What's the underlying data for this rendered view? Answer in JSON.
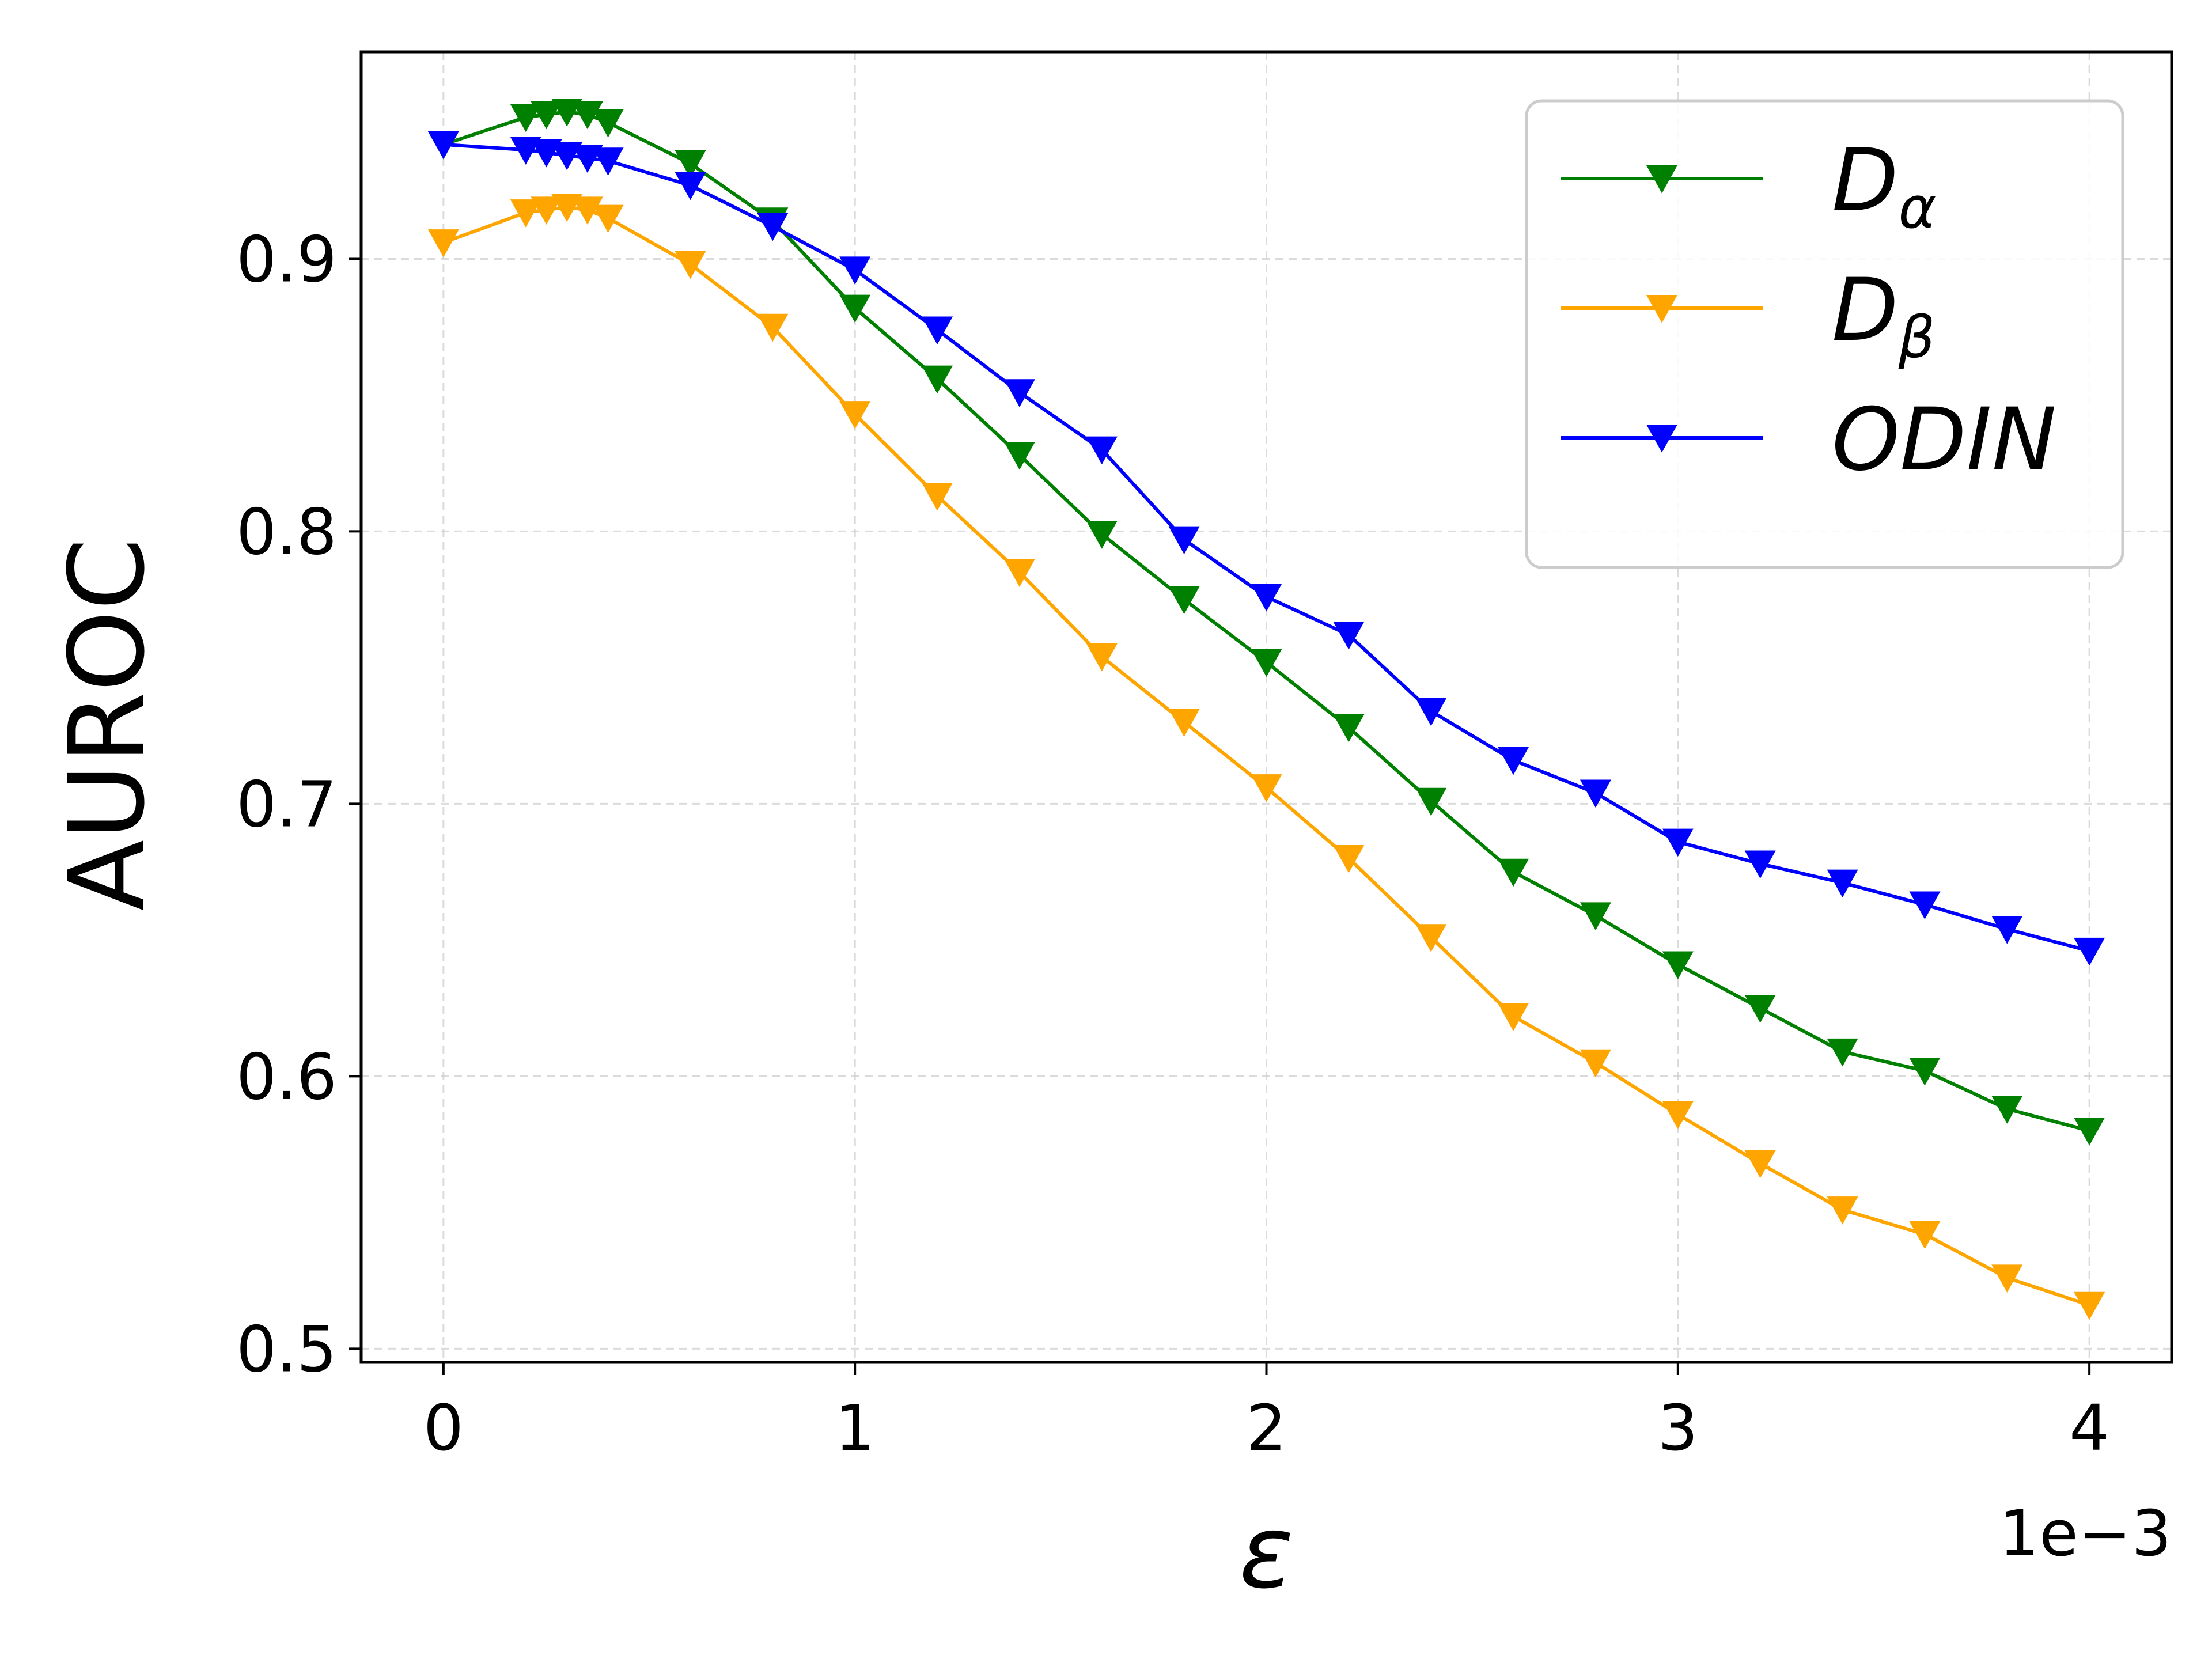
{
  "chart_data": {
    "type": "line",
    "title": "",
    "xlabel": "ε",
    "ylabel": "AUROC",
    "x_offset_label": "1e−3",
    "xlim": [
      -0.2,
      4.2
    ],
    "ylim": [
      0.495,
      0.976
    ],
    "xticks": [
      0,
      1,
      2,
      3,
      4
    ],
    "xtick_labels": [
      "0",
      "1",
      "2",
      "3",
      "4"
    ],
    "yticks": [
      0.5,
      0.6,
      0.7,
      0.8,
      0.9
    ],
    "ytick_labels": [
      "0.5",
      "0.6",
      "0.7",
      "0.8",
      "0.9"
    ],
    "grid": true,
    "legend_position": "top-right",
    "x": [
      0,
      0.2,
      0.25,
      0.3,
      0.35,
      0.4,
      0.6,
      0.8,
      1.0,
      1.2,
      1.4,
      1.6,
      1.8,
      2.0,
      2.2,
      2.4,
      2.6,
      2.8,
      3.0,
      3.2,
      3.4,
      3.6,
      3.8,
      4.0
    ],
    "series": [
      {
        "name": "D",
        "subscript": "α",
        "color": "#008000",
        "marker": "triangle-down",
        "values": [
          0.942,
          0.952,
          0.953,
          0.954,
          0.953,
          0.95,
          0.935,
          0.914,
          0.882,
          0.856,
          0.828,
          0.799,
          0.775,
          0.752,
          0.728,
          0.701,
          0.675,
          0.659,
          0.641,
          0.625,
          0.609,
          0.602,
          0.588,
          0.58
        ]
      },
      {
        "name": "D",
        "subscript": "β",
        "color": "#FFA500",
        "marker": "triangle-down",
        "values": [
          0.906,
          0.917,
          0.918,
          0.919,
          0.918,
          0.915,
          0.898,
          0.875,
          0.843,
          0.813,
          0.785,
          0.754,
          0.73,
          0.706,
          0.68,
          0.651,
          0.622,
          0.605,
          0.586,
          0.568,
          0.551,
          0.542,
          0.526,
          0.516
        ]
      },
      {
        "name": "ODIN",
        "subscript": "",
        "color": "#0000FF",
        "marker": "triangle-down",
        "values": [
          0.942,
          0.94,
          0.939,
          0.938,
          0.937,
          0.936,
          0.927,
          0.912,
          0.896,
          0.874,
          0.851,
          0.83,
          0.797,
          0.776,
          0.762,
          0.734,
          0.716,
          0.704,
          0.686,
          0.678,
          0.671,
          0.663,
          0.654,
          0.646
        ]
      }
    ]
  }
}
